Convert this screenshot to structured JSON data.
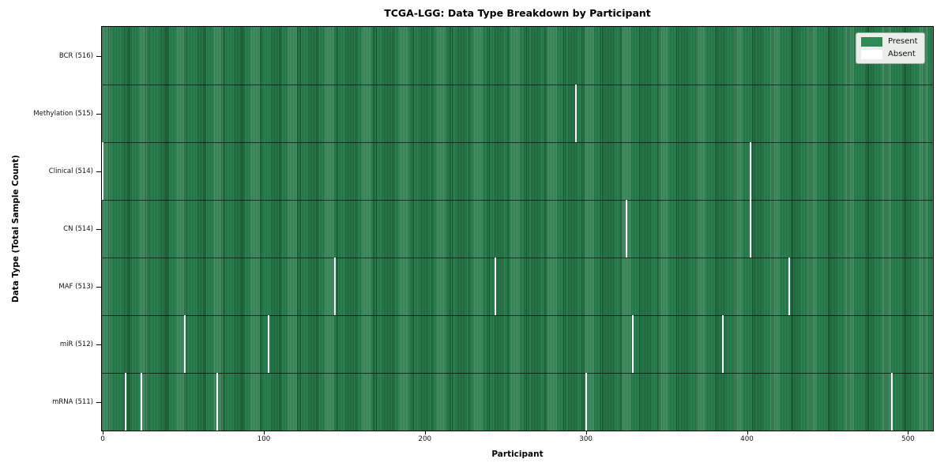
{
  "chart_data": {
    "type": "heatmap",
    "title": "TCGA-LGG: Data Type Breakdown by Participant",
    "xlabel": "Participant",
    "ylabel": "Data Type (Total Sample Count)",
    "x_ticks": [
      0,
      100,
      200,
      300,
      400,
      500
    ],
    "x_range": [
      -0.5,
      515.5
    ],
    "total_participants": 516,
    "grid": false,
    "legend": {
      "position": "upper right",
      "items": [
        {
          "label": "Present",
          "color": "#2e8b57"
        },
        {
          "label": "Absent",
          "color": "#ffffff"
        }
      ]
    },
    "rows": [
      {
        "label": "BCR",
        "count": 516,
        "tick_label": "BCR (516)",
        "absent_participants": []
      },
      {
        "label": "Methylation",
        "count": 515,
        "tick_label": "Methylation (515)",
        "absent_participants": [
          294
        ]
      },
      {
        "label": "Clinical",
        "count": 514,
        "tick_label": "Clinical (514)",
        "absent_participants": [
          0,
          402
        ]
      },
      {
        "label": "CN",
        "count": 514,
        "tick_label": "CN (514)",
        "absent_participants": [
          325,
          402
        ]
      },
      {
        "label": "MAF",
        "count": 513,
        "tick_label": "MAF (513)",
        "absent_participants": [
          144,
          244,
          426
        ]
      },
      {
        "label": "miR",
        "count": 512,
        "tick_label": "miR (512)",
        "absent_participants": [
          51,
          103,
          329,
          385
        ]
      },
      {
        "label": "mRNA",
        "count": 511,
        "tick_label": "mRNA (511)",
        "absent_participants": [
          14,
          24,
          71,
          300,
          490
        ]
      }
    ],
    "colors": {
      "present": "#2e8b57",
      "bar_edge": "#16492b",
      "absent_line": "#fafafa",
      "row_divider": "#1a1a1a",
      "legend_bg": "#e9eee9",
      "legend_border": "#a8b0a8",
      "background": "#ffffff"
    }
  }
}
